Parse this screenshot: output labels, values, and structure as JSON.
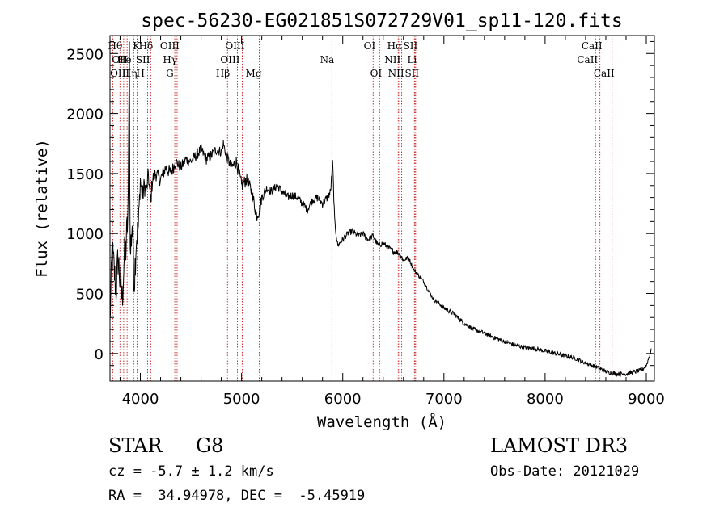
{
  "chart_data": {
    "type": "line",
    "title": "spec-56230-EG021851S072729V01_sp11-120.fits",
    "xlabel": "Wavelength (Å)",
    "ylabel": "Flux (relative)",
    "xlim": [
      3700,
      9080
    ],
    "ylim": [
      -230,
      2650
    ],
    "xticks": [
      {
        "value": 4000,
        "label": "4000"
      },
      {
        "value": 5000,
        "label": "5000"
      },
      {
        "value": 6000,
        "label": "6000"
      },
      {
        "value": 7000,
        "label": "7000"
      },
      {
        "value": 8000,
        "label": "8000"
      },
      {
        "value": 9000,
        "label": "9000"
      }
    ],
    "yticks": [
      {
        "value": 0,
        "label": "0"
      },
      {
        "value": 500,
        "label": "500"
      },
      {
        "value": 1000,
        "label": "1000"
      },
      {
        "value": 1500,
        "label": "1500"
      },
      {
        "value": 2000,
        "label": "2000"
      },
      {
        "value": 2500,
        "label": "2500"
      }
    ],
    "series": [
      {
        "name": "flux",
        "x": [
          3700,
          3720,
          3740,
          3760,
          3780,
          3800,
          3820,
          3840,
          3860,
          3880,
          3890,
          3900,
          3920,
          3940,
          3960,
          3980,
          4000,
          4020,
          4040,
          4060,
          4080,
          4100,
          4120,
          4150,
          4200,
          4250,
          4300,
          4350,
          4400,
          4450,
          4500,
          4550,
          4600,
          4650,
          4700,
          4750,
          4800,
          4820,
          4850,
          4900,
          4950,
          5000,
          5050,
          5100,
          5150,
          5180,
          5200,
          5250,
          5300,
          5350,
          5400,
          5450,
          5500,
          5550,
          5600,
          5650,
          5700,
          5750,
          5800,
          5850,
          5880,
          5900,
          5920,
          5950,
          6000,
          6050,
          6100,
          6150,
          6200,
          6250,
          6300,
          6350,
          6400,
          6450,
          6500,
          6550,
          6600,
          6650,
          6700,
          6750,
          6800,
          6850,
          6900,
          6950,
          7000,
          7100,
          7200,
          7300,
          7400,
          7500,
          7600,
          7700,
          7800,
          7900,
          8000,
          8100,
          8200,
          8300,
          8400,
          8500,
          8600,
          8700,
          8800,
          8900,
          8950,
          9000,
          9050
        ],
        "y": [
          250,
          850,
          700,
          520,
          800,
          600,
          450,
          780,
          900,
          1200,
          2500,
          800,
          1100,
          600,
          950,
          1050,
          1450,
          1300,
          1400,
          1350,
          1500,
          1250,
          1450,
          1500,
          1450,
          1550,
          1500,
          1600,
          1550,
          1620,
          1600,
          1650,
          1700,
          1620,
          1650,
          1700,
          1680,
          1750,
          1650,
          1550,
          1600,
          1400,
          1450,
          1350,
          1150,
          1200,
          1300,
          1380,
          1350,
          1400,
          1350,
          1300,
          1320,
          1300,
          1250,
          1200,
          1280,
          1300,
          1250,
          1300,
          1350,
          1600,
          1100,
          900,
          950,
          1000,
          1020,
          980,
          1000,
          950,
          980,
          900,
          920,
          880,
          850,
          840,
          780,
          800,
          700,
          650,
          600,
          520,
          450,
          420,
          380,
          330,
          250,
          200,
          170,
          130,
          100,
          70,
          50,
          40,
          20,
          0,
          -20,
          -40,
          -80,
          -110,
          -150,
          -170,
          -170,
          -150,
          -140,
          -100,
          30
        ],
        "noise": [
          150,
          300,
          300,
          250,
          300,
          300,
          300,
          300,
          300,
          300,
          0,
          300,
          300,
          300,
          250,
          200,
          150,
          150,
          150,
          120,
          120,
          150,
          120,
          100,
          100,
          100,
          100,
          80,
          80,
          80,
          80,
          80,
          80,
          80,
          80,
          80,
          70,
          70,
          70,
          80,
          90,
          100,
          90,
          90,
          100,
          80,
          80,
          60,
          60,
          60,
          60,
          60,
          60,
          60,
          60,
          60,
          60,
          60,
          60,
          60,
          60,
          60,
          60,
          40,
          40,
          40,
          40,
          40,
          40,
          40,
          40,
          40,
          40,
          40,
          40,
          40,
          40,
          30,
          30,
          30,
          30,
          30,
          30,
          30,
          30,
          30,
          30,
          30,
          30,
          30,
          30,
          30,
          30,
          30,
          30,
          30,
          30,
          30,
          30,
          30,
          30,
          30,
          30,
          30,
          30,
          30,
          30
        ]
      }
    ],
    "lines": [
      {
        "name": "Hθ",
        "wavelength": 3798,
        "row": 1,
        "anchor": "end"
      },
      {
        "name": "OII",
        "wavelength": 3727,
        "row": 2,
        "anchor": "start"
      },
      {
        "name": "OIII",
        "wavelength": 3869,
        "row": 3,
        "anchor": "end"
      },
      {
        "name": "Hη",
        "wavelength": 3835,
        "row": 3,
        "anchor": "start"
      },
      {
        "name": "He",
        "wavelength": 3889,
        "row": 2,
        "anchor": "end"
      },
      {
        "name": "K",
        "wavelength": 3934,
        "row": 1,
        "anchor": "start"
      },
      {
        "name": "H",
        "wavelength": 3968,
        "row": 3,
        "anchor": "start"
      },
      {
        "name": "SII",
        "wavelength": 4072,
        "row": 2,
        "anchor": "end"
      },
      {
        "name": "Hδ",
        "wavelength": 4102,
        "row": 1,
        "anchor": "end"
      },
      {
        "name": "OIII",
        "wavelength": 4363,
        "row": 1,
        "anchor": "end"
      },
      {
        "name": "Hγ",
        "wavelength": 4340,
        "row": 2,
        "anchor": "end"
      },
      {
        "name": "G",
        "wavelength": 4305,
        "row": 3,
        "anchor": "end"
      },
      {
        "name": "Hβ",
        "wavelength": 4861,
        "row": 3,
        "anchor": "end"
      },
      {
        "name": "OIII",
        "wavelength": 4959,
        "row": 2,
        "anchor": "end"
      },
      {
        "name": "OIII",
        "wavelength": 5007,
        "row": 1,
        "anchor": "end"
      },
      {
        "name": "Mg",
        "wavelength": 5175,
        "row": 3,
        "anchor": "end"
      },
      {
        "name": "Na",
        "wavelength": 5893,
        "row": 2,
        "anchor": "end"
      },
      {
        "name": "OI",
        "wavelength": 6300,
        "row": 1,
        "anchor": "end"
      },
      {
        "name": "OI",
        "wavelength": 6364,
        "row": 3,
        "anchor": "end"
      },
      {
        "name": "NII",
        "wavelength": 6548,
        "row": 2,
        "anchor": "end"
      },
      {
        "name": "Hα",
        "wavelength": 6563,
        "row": 1,
        "anchor": "end"
      },
      {
        "name": "NII",
        "wavelength": 6583,
        "row": 3,
        "anchor": "end"
      },
      {
        "name": "Li",
        "wavelength": 6708,
        "row": 2,
        "anchor": "end"
      },
      {
        "name": "SII",
        "wavelength": 6716,
        "row": 1,
        "anchor": "end"
      },
      {
        "name": "SII",
        "wavelength": 6731,
        "row": 3,
        "anchor": "end"
      },
      {
        "name": "CaII",
        "wavelength": 8498,
        "row": 2,
        "anchor": "end"
      },
      {
        "name": "CaII",
        "wavelength": 8542,
        "row": 1,
        "anchor": "end"
      },
      {
        "name": "CaII",
        "wavelength": 8662,
        "row": 3,
        "anchor": "end"
      }
    ]
  },
  "info": {
    "object_class": "STAR",
    "subclass": "G8",
    "survey": "LAMOST DR3",
    "redshift": "cz = -5.7 ± 1.2 km/s",
    "obs_date": "Obs-Date: 20121029",
    "coords": "RA =  34.94978, DEC =  -5.45919"
  }
}
